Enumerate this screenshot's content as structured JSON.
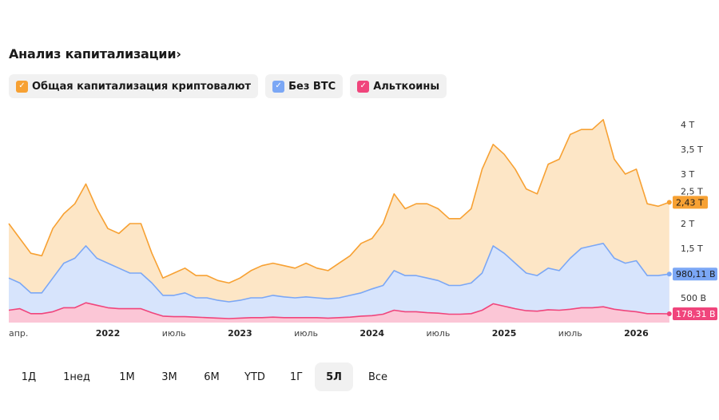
{
  "header": {
    "title": "Анализ капитализации",
    "chevron": "›"
  },
  "legend": [
    {
      "label": "Общая капитализация криптовалют",
      "color": "#f7a133",
      "checked": true
    },
    {
      "label": "Без BTC",
      "color": "#7ba7f5",
      "checked": true
    },
    {
      "label": "Альткоины",
      "color": "#f0457c",
      "checked": true
    }
  ],
  "periods": [
    {
      "label": "1Д",
      "active": false
    },
    {
      "label": "1нед",
      "active": false
    },
    {
      "label": "1М",
      "active": false
    },
    {
      "label": "3М",
      "active": false
    },
    {
      "label": "6М",
      "active": false
    },
    {
      "label": "YTD",
      "active": false
    },
    {
      "label": "1Г",
      "active": false
    },
    {
      "label": "5Л",
      "active": true
    },
    {
      "label": "Все",
      "active": false
    }
  ],
  "chart_data": {
    "type": "area",
    "title": "Анализ капитализации",
    "x_unit": "month",
    "x_start": "2021-04",
    "x_tick_labels": [
      {
        "label": "апр.",
        "month_index": 0,
        "strong": false
      },
      {
        "label": "2022",
        "month_index": 9,
        "strong": true
      },
      {
        "label": "июль",
        "month_index": 15,
        "strong": false
      },
      {
        "label": "2023",
        "month_index": 21,
        "strong": true
      },
      {
        "label": "июль",
        "month_index": 27,
        "strong": false
      },
      {
        "label": "2024",
        "month_index": 33,
        "strong": true
      },
      {
        "label": "июль",
        "month_index": 39,
        "strong": false
      },
      {
        "label": "2025",
        "month_index": 45,
        "strong": true
      },
      {
        "label": "июль",
        "month_index": 51,
        "strong": false
      },
      {
        "label": "2026",
        "month_index": 57,
        "strong": true
      }
    ],
    "y_unit": "trillion USD",
    "ylim": [
      0,
      4.2
    ],
    "y_ticks": [
      {
        "value": 0.5,
        "label": "500 B"
      },
      {
        "value": 1.5,
        "label": "1,5 T"
      },
      {
        "value": 2,
        "label": "2 T"
      },
      {
        "value": 2.5,
        "label": "2,5 T"
      },
      {
        "value": 3,
        "label": "3 T"
      },
      {
        "value": 3.5,
        "label": "3,5 T"
      },
      {
        "value": 4,
        "label": "4 T"
      }
    ],
    "series": [
      {
        "name": "Общая капитализация криптовалют",
        "color": "#f7a133",
        "fill": "#fde6c6",
        "last_label": "2,43 T",
        "badge_text": "#1a1a1a",
        "values": [
          2.0,
          1.7,
          1.4,
          1.35,
          1.9,
          2.2,
          2.4,
          2.8,
          2.3,
          1.9,
          1.8,
          2.0,
          2.0,
          1.4,
          0.9,
          1.0,
          1.1,
          0.95,
          0.95,
          0.85,
          0.8,
          0.9,
          1.05,
          1.15,
          1.2,
          1.15,
          1.1,
          1.2,
          1.1,
          1.05,
          1.2,
          1.35,
          1.6,
          1.7,
          2.0,
          2.6,
          2.3,
          2.4,
          2.4,
          2.3,
          2.1,
          2.1,
          2.3,
          3.1,
          3.6,
          3.4,
          3.1,
          2.7,
          2.6,
          3.2,
          3.3,
          3.8,
          3.9,
          3.9,
          4.1,
          3.3,
          3.0,
          3.1,
          2.4,
          2.35,
          2.43
        ]
      },
      {
        "name": "Без BTC",
        "color": "#7ba7f5",
        "fill": "#d7e4fc",
        "last_label": "980,11 B",
        "badge_text": "#1a1a1a",
        "values": [
          0.9,
          0.8,
          0.6,
          0.6,
          0.9,
          1.2,
          1.3,
          1.55,
          1.3,
          1.2,
          1.1,
          1.0,
          1.0,
          0.8,
          0.55,
          0.55,
          0.6,
          0.5,
          0.5,
          0.45,
          0.42,
          0.45,
          0.5,
          0.5,
          0.55,
          0.52,
          0.5,
          0.52,
          0.5,
          0.48,
          0.5,
          0.55,
          0.6,
          0.68,
          0.75,
          1.05,
          0.95,
          0.95,
          0.9,
          0.85,
          0.75,
          0.75,
          0.8,
          1.0,
          1.55,
          1.4,
          1.2,
          1.0,
          0.95,
          1.1,
          1.05,
          1.3,
          1.5,
          1.55,
          1.6,
          1.3,
          1.2,
          1.25,
          0.95,
          0.95,
          0.98
        ]
      },
      {
        "name": "Альткоины",
        "color": "#f0457c",
        "fill": "#fbc6d6",
        "last_label": "178,31 B",
        "badge_text": "#ffffff",
        "values": [
          0.25,
          0.28,
          0.18,
          0.18,
          0.22,
          0.3,
          0.3,
          0.4,
          0.35,
          0.3,
          0.28,
          0.28,
          0.28,
          0.2,
          0.13,
          0.12,
          0.12,
          0.11,
          0.1,
          0.09,
          0.08,
          0.09,
          0.1,
          0.1,
          0.11,
          0.1,
          0.1,
          0.1,
          0.1,
          0.09,
          0.1,
          0.11,
          0.13,
          0.14,
          0.17,
          0.25,
          0.22,
          0.22,
          0.2,
          0.19,
          0.17,
          0.17,
          0.18,
          0.25,
          0.38,
          0.33,
          0.28,
          0.24,
          0.23,
          0.26,
          0.25,
          0.27,
          0.3,
          0.3,
          0.32,
          0.27,
          0.24,
          0.22,
          0.18,
          0.18,
          0.178
        ]
      }
    ]
  }
}
